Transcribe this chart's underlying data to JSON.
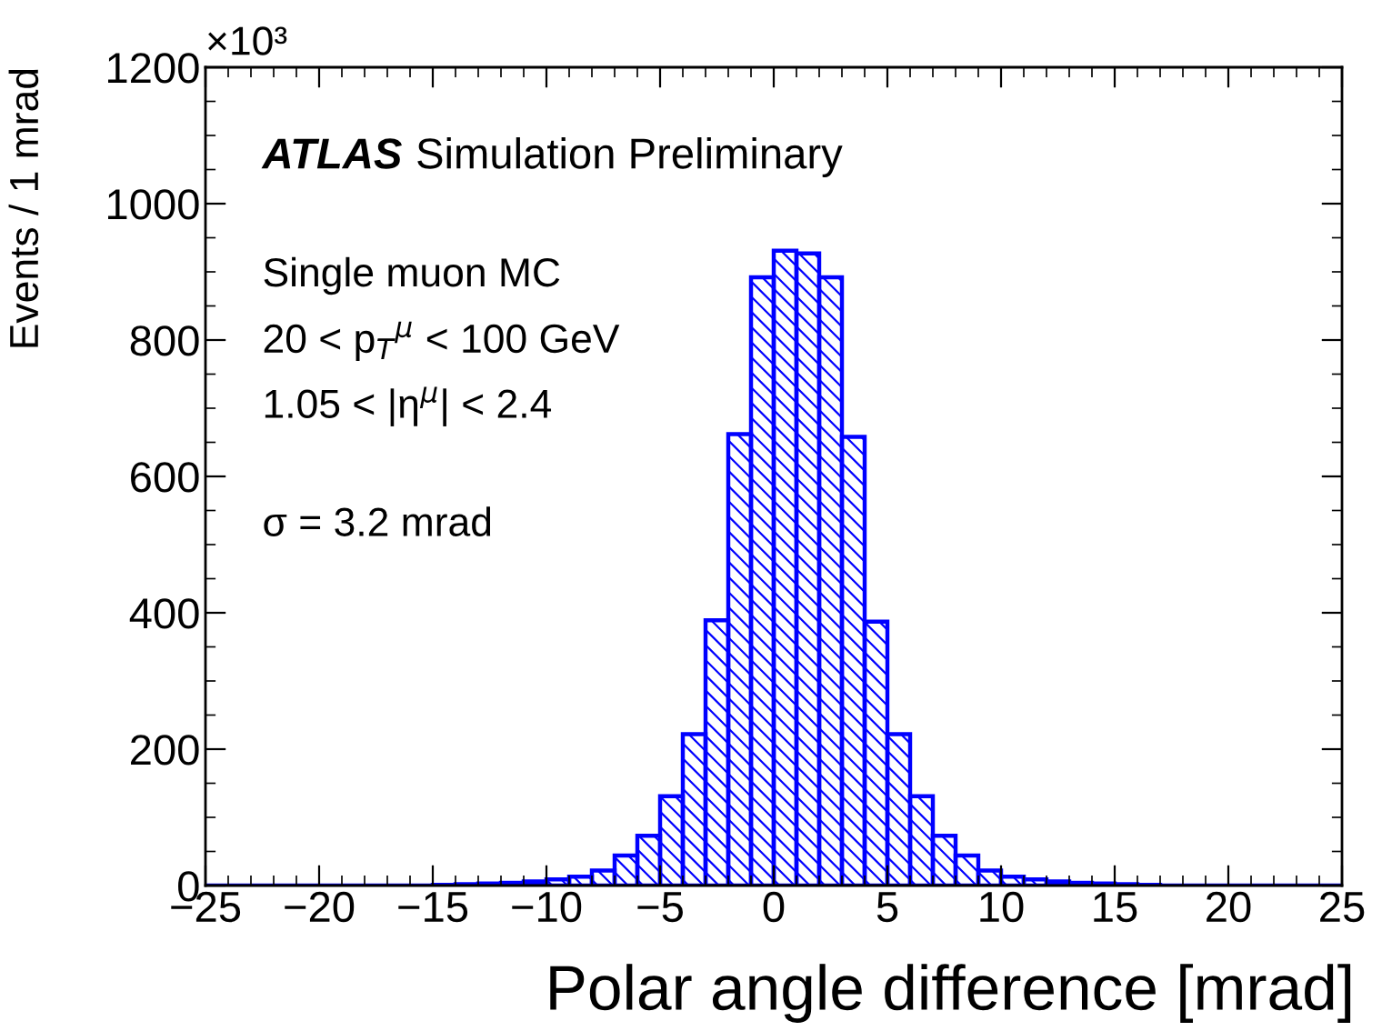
{
  "chart_data": {
    "type": "histogram",
    "xlabel": "Polar angle difference [mrad]",
    "ylabel": "Events / 1 mrad",
    "bins": [
      -25,
      -24,
      -23,
      -22,
      -21,
      -20,
      -19,
      -18,
      -17,
      -16,
      -15,
      -14,
      -13,
      -12,
      -11,
      -10,
      -9,
      -8,
      -7,
      -6,
      -5,
      -4,
      -3,
      -2,
      -1,
      0,
      1,
      2,
      3,
      4,
      5,
      6,
      7,
      8,
      9,
      10,
      11,
      12,
      13,
      14,
      15,
      16,
      17,
      18,
      19,
      20,
      21,
      22,
      23,
      24,
      25
    ],
    "values": [
      0,
      0,
      0,
      0,
      0,
      0,
      0,
      0,
      0,
      0,
      1,
      2,
      3,
      4,
      6,
      9,
      13,
      22,
      44,
      73,
      131,
      222,
      389,
      662,
      892,
      931,
      927,
      892,
      658,
      387,
      222,
      131,
      73,
      44,
      22,
      13,
      9,
      6,
      4,
      3,
      2,
      1,
      0,
      0,
      0,
      0,
      0,
      0,
      0,
      0
    ],
    "color": "#0000ff",
    "xlim": [
      -25,
      25
    ],
    "xticks": [
      {
        "value": -25,
        "label": "−25"
      },
      {
        "value": -20,
        "label": "−20"
      },
      {
        "value": -15,
        "label": "−15"
      },
      {
        "value": -10,
        "label": "−10"
      },
      {
        "value": -5,
        "label": "−5"
      },
      0,
      5,
      10,
      15,
      20,
      25
    ],
    "ylim": [
      0,
      1200
    ],
    "yticks": [
      0,
      200,
      400,
      600,
      800,
      1000,
      1200
    ],
    "grid": false,
    "legend": false,
    "annotations": [
      "×10³",
      "ATLAS",
      "Simulation Preliminary",
      "Single muon MC",
      "20 < p$_{T}$$^{μ}$ < 100 GeV",
      "1.05 < |η$^{μ}$| < 2.4",
      "σ = 3.2 mrad"
    ]
  }
}
